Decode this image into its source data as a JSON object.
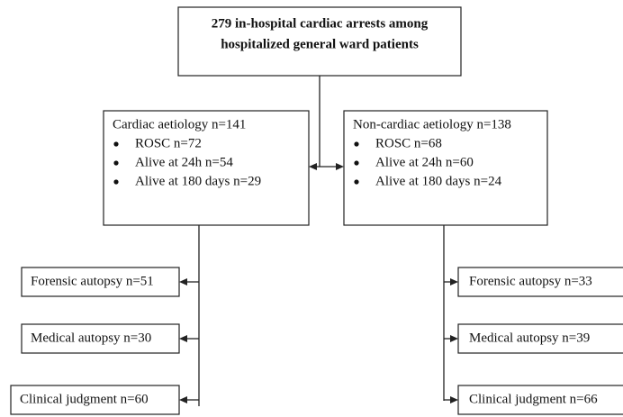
{
  "root": {
    "lines": [
      "279 in-hospital cardiac arrests among",
      "hospitalized general ward patients"
    ]
  },
  "branches": [
    {
      "title": "Cardiac aetiology n=141",
      "items": [
        "ROSC n=72",
        "Alive at 24h n=54",
        "Alive at 180 days n=29"
      ],
      "outcomes": [
        "Forensic autopsy n=51",
        "Medical autopsy n=30",
        "Clinical judgment n=60"
      ]
    },
    {
      "title": "Non-cardiac aetiology n=138",
      "items": [
        "ROSC n=68",
        "Alive at 24h n=60",
        "Alive at 180 days n=24"
      ],
      "outcomes": [
        "Forensic autopsy n=33",
        "Medical autopsy n=39",
        "Clinical judgment n=66"
      ]
    }
  ]
}
